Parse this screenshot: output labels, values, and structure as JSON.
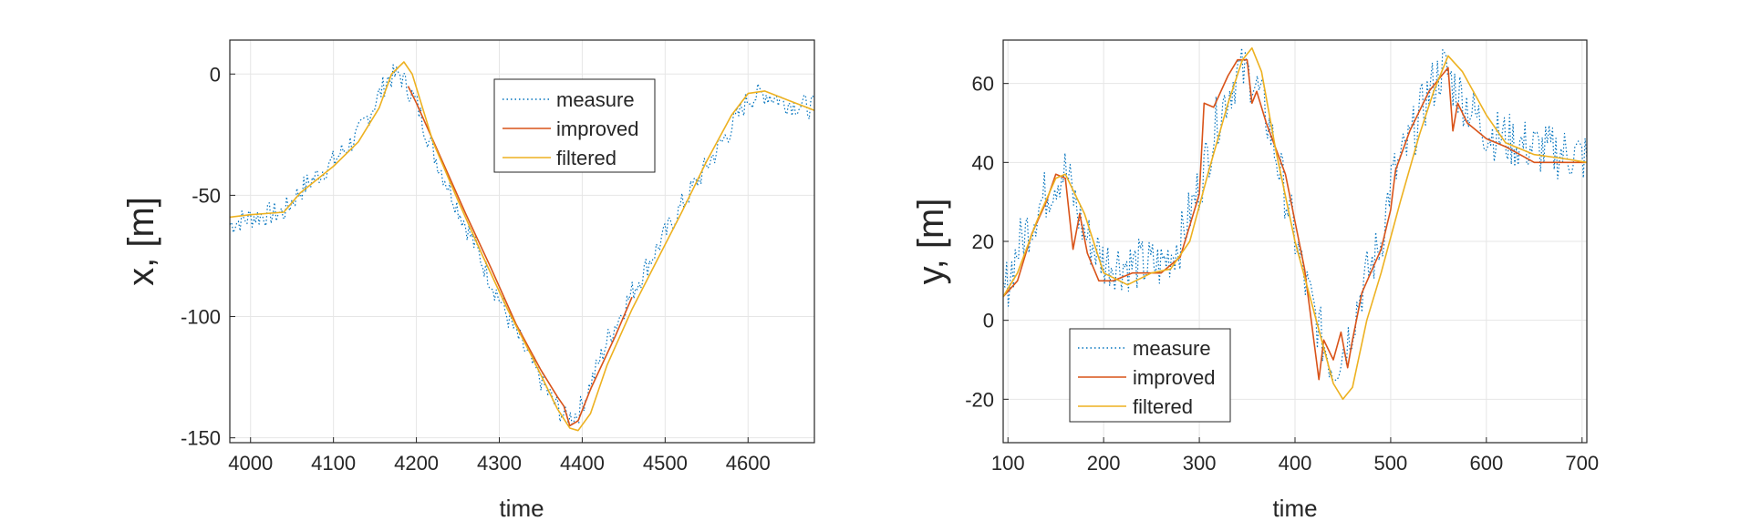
{
  "chart_data": [
    {
      "type": "line",
      "xlabel": "time",
      "ylabel": "x, [m]",
      "xlim": [
        3975,
        4680
      ],
      "ylim": [
        -152,
        14
      ],
      "xticks": [
        4000,
        4100,
        4200,
        4300,
        4400,
        4500,
        4600
      ],
      "yticks": [
        0,
        -50,
        -100,
        -150
      ],
      "grid": true,
      "legend_position": "top-center",
      "series": [
        {
          "name": "measure",
          "color": "#0072BD",
          "style": "dotted",
          "noise": 5,
          "points": [
            [
              3975,
              -62
            ],
            [
              4000,
              -59
            ],
            [
              4040,
              -57
            ],
            [
              4060,
              -48
            ],
            [
              4100,
              -36
            ],
            [
              4130,
              -25
            ],
            [
              4150,
              -12
            ],
            [
              4165,
              -2
            ],
            [
              4180,
              0
            ],
            [
              4200,
              -12
            ],
            [
              4220,
              -32
            ],
            [
              4250,
              -55
            ],
            [
              4280,
              -78
            ],
            [
              4310,
              -100
            ],
            [
              4340,
              -120
            ],
            [
              4365,
              -135
            ],
            [
              4380,
              -142
            ],
            [
              4395,
              -140
            ],
            [
              4410,
              -128
            ],
            [
              4430,
              -110
            ],
            [
              4460,
              -90
            ],
            [
              4490,
              -72
            ],
            [
              4520,
              -54
            ],
            [
              4550,
              -38
            ],
            [
              4580,
              -22
            ],
            [
              4600,
              -10
            ],
            [
              4620,
              -8
            ],
            [
              4650,
              -12
            ],
            [
              4680,
              -14
            ]
          ]
        },
        {
          "name": "improved",
          "color": "#D95319",
          "style": "solid",
          "noise": 0,
          "points": [
            [
              4190,
              -5
            ],
            [
              4200,
              -12
            ],
            [
              4230,
              -35
            ],
            [
              4260,
              -58
            ],
            [
              4290,
              -80
            ],
            [
              4320,
              -103
            ],
            [
              4350,
              -122
            ],
            [
              4370,
              -133
            ],
            [
              4378,
              -137
            ],
            [
              4385,
              -145
            ],
            [
              4395,
              -143
            ],
            [
              4410,
              -130
            ],
            [
              4440,
              -108
            ],
            [
              4460,
              -92
            ]
          ]
        },
        {
          "name": "filtered",
          "color": "#EDB120",
          "style": "solid",
          "noise": 0,
          "points": [
            [
              3975,
              -59
            ],
            [
              4000,
              -58
            ],
            [
              4040,
              -57
            ],
            [
              4060,
              -49
            ],
            [
              4100,
              -38
            ],
            [
              4130,
              -28
            ],
            [
              4155,
              -14
            ],
            [
              4170,
              0
            ],
            [
              4185,
              5
            ],
            [
              4195,
              0
            ],
            [
              4220,
              -28
            ],
            [
              4250,
              -52
            ],
            [
              4280,
              -75
            ],
            [
              4310,
              -97
            ],
            [
              4340,
              -117
            ],
            [
              4370,
              -138
            ],
            [
              4385,
              -146
            ],
            [
              4395,
              -147
            ],
            [
              4410,
              -140
            ],
            [
              4430,
              -120
            ],
            [
              4460,
              -97
            ],
            [
              4490,
              -77
            ],
            [
              4520,
              -57
            ],
            [
              4550,
              -36
            ],
            [
              4580,
              -17
            ],
            [
              4600,
              -8
            ],
            [
              4620,
              -7
            ],
            [
              4650,
              -11
            ],
            [
              4680,
              -15
            ]
          ]
        }
      ]
    },
    {
      "type": "line",
      "xlabel": "time",
      "ylabel": "y, [m]",
      "xlim": [
        95,
        705
      ],
      "ylim": [
        -31,
        71
      ],
      "xticks": [
        100,
        200,
        300,
        400,
        500,
        600,
        700
      ],
      "yticks": [
        60,
        40,
        20,
        0,
        -20
      ],
      "grid": true,
      "legend_position": "bottom-left",
      "series": [
        {
          "name": "measure",
          "color": "#0072BD",
          "style": "dotted",
          "noise": 7,
          "points": [
            [
              95,
              6
            ],
            [
              110,
              18
            ],
            [
              130,
              28
            ],
            [
              150,
              36
            ],
            [
              160,
              38
            ],
            [
              180,
              22
            ],
            [
              200,
              15
            ],
            [
              230,
              14
            ],
            [
              260,
              14
            ],
            [
              280,
              20
            ],
            [
              300,
              34
            ],
            [
              320,
              52
            ],
            [
              340,
              63
            ],
            [
              355,
              62
            ],
            [
              370,
              52
            ],
            [
              390,
              32
            ],
            [
              410,
              10
            ],
            [
              430,
              -6
            ],
            [
              440,
              -12
            ],
            [
              455,
              -5
            ],
            [
              470,
              8
            ],
            [
              490,
              20
            ],
            [
              500,
              35
            ],
            [
              520,
              45
            ],
            [
              540,
              58
            ],
            [
              555,
              64
            ],
            [
              570,
              58
            ],
            [
              600,
              48
            ],
            [
              630,
              45
            ],
            [
              660,
              43
            ],
            [
              690,
              42
            ],
            [
              705,
              41
            ]
          ]
        },
        {
          "name": "improved",
          "color": "#D95319",
          "style": "solid",
          "noise": 0,
          "points": [
            [
              95,
              6
            ],
            [
              110,
              10
            ],
            [
              125,
              22
            ],
            [
              140,
              30
            ],
            [
              150,
              37
            ],
            [
              160,
              36
            ],
            [
              168,
              18
            ],
            [
              175,
              27
            ],
            [
              183,
              17
            ],
            [
              195,
              10
            ],
            [
              210,
              10
            ],
            [
              230,
              12
            ],
            [
              260,
              12
            ],
            [
              280,
              16
            ],
            [
              300,
              32
            ],
            [
              305,
              55
            ],
            [
              315,
              54
            ],
            [
              330,
              62
            ],
            [
              340,
              66
            ],
            [
              350,
              66
            ],
            [
              355,
              55
            ],
            [
              360,
              58
            ],
            [
              370,
              50
            ],
            [
              390,
              37
            ],
            [
              410,
              13
            ],
            [
              425,
              -15
            ],
            [
              430,
              -5
            ],
            [
              440,
              -10
            ],
            [
              448,
              -3
            ],
            [
              455,
              -12
            ],
            [
              460,
              -5
            ],
            [
              470,
              7
            ],
            [
              490,
              18
            ],
            [
              500,
              28
            ],
            [
              505,
              38
            ],
            [
              520,
              48
            ],
            [
              540,
              58
            ],
            [
              560,
              64
            ],
            [
              565,
              48
            ],
            [
              570,
              55
            ],
            [
              580,
              50
            ],
            [
              600,
              46
            ],
            [
              620,
              44
            ],
            [
              650,
              40
            ],
            [
              680,
              40
            ],
            [
              705,
              40
            ]
          ]
        },
        {
          "name": "filtered",
          "color": "#EDB120",
          "style": "solid",
          "noise": 0,
          "points": [
            [
              95,
              6
            ],
            [
              110,
              12
            ],
            [
              130,
              25
            ],
            [
              150,
              36
            ],
            [
              160,
              37
            ],
            [
              180,
              27
            ],
            [
              200,
              12
            ],
            [
              225,
              9
            ],
            [
              250,
              12
            ],
            [
              270,
              13
            ],
            [
              290,
              20
            ],
            [
              310,
              38
            ],
            [
              330,
              55
            ],
            [
              345,
              66
            ],
            [
              355,
              69
            ],
            [
              365,
              63
            ],
            [
              380,
              43
            ],
            [
              400,
              20
            ],
            [
              420,
              2
            ],
            [
              440,
              -16
            ],
            [
              450,
              -20
            ],
            [
              460,
              -17
            ],
            [
              475,
              0
            ],
            [
              490,
              12
            ],
            [
              510,
              30
            ],
            [
              530,
              47
            ],
            [
              545,
              58
            ],
            [
              560,
              67
            ],
            [
              575,
              63
            ],
            [
              600,
              52
            ],
            [
              620,
              45
            ],
            [
              650,
              42
            ],
            [
              680,
              41
            ],
            [
              705,
              40
            ]
          ]
        }
      ]
    }
  ],
  "legend_labels": [
    "measure",
    "improved",
    "filtered"
  ]
}
